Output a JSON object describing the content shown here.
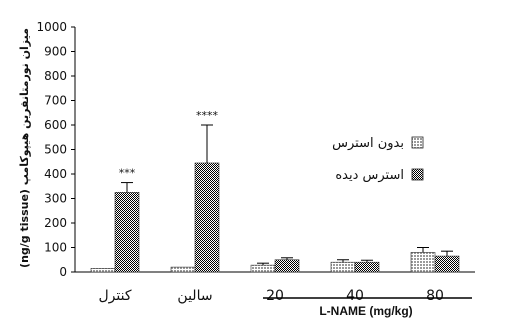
{
  "chart_data": {
    "type": "bar",
    "ylabel": "(ng/g tissue) میزان نورمتانفرین هیپوکامپ",
    "ylim": [
      0,
      1000
    ],
    "yticks": [
      0,
      100,
      200,
      300,
      400,
      500,
      600,
      700,
      800,
      900,
      1000
    ],
    "categories": [
      "کنترل",
      "سالین",
      "20",
      "40",
      "80"
    ],
    "group_label": "L-NAME (mg/kg)",
    "series": [
      {
        "name": "بدون استرس",
        "pattern": "grid",
        "color": "#e8e8e8",
        "values": [
          15,
          20,
          28,
          40,
          80
        ],
        "errors": [
          0,
          0,
          8,
          10,
          20
        ]
      },
      {
        "name": "استرس دیده",
        "pattern": "checker",
        "color": "#1a1a1a",
        "values": [
          325,
          445,
          50,
          40,
          65
        ],
        "errors": [
          40,
          155,
          8,
          8,
          20
        ]
      }
    ],
    "annotations": [
      {
        "category_index": 0,
        "series_index": 1,
        "text": "***"
      },
      {
        "category_index": 1,
        "series_index": 1,
        "text": "****"
      }
    ],
    "legend_position": "right"
  }
}
